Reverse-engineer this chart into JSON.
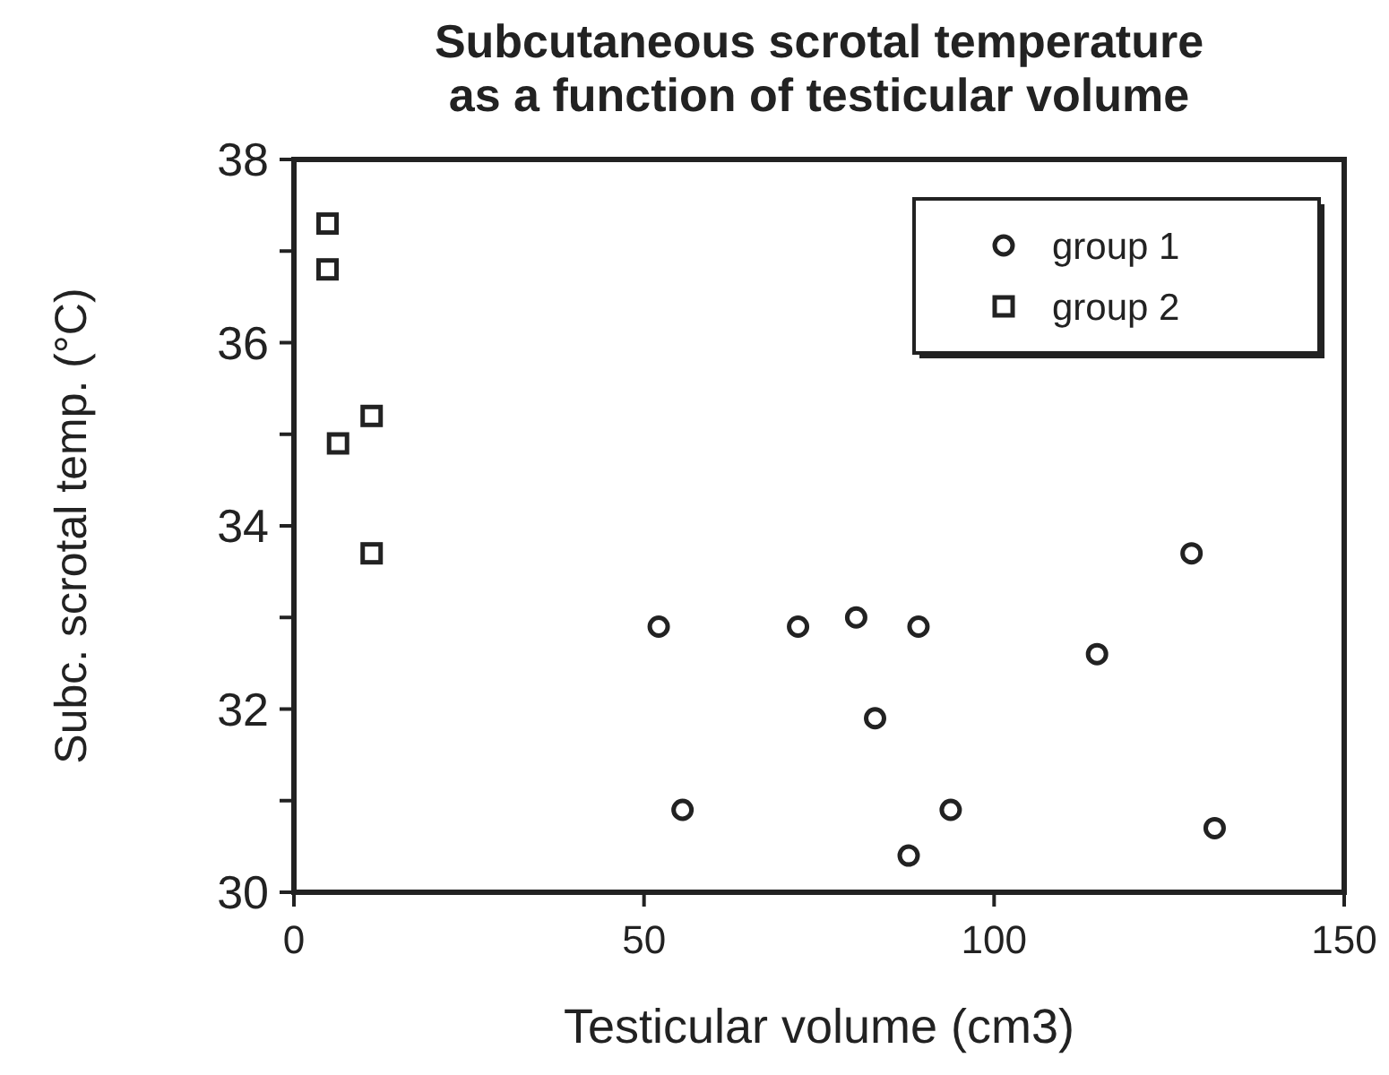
{
  "chart_data": {
    "type": "scatter",
    "title": "Subcutaneous scrotal temperature\nas a function of testicular volume",
    "xlabel": "Testicular volume (cm3)",
    "ylabel": "Subc. scrotal temp. (°C)",
    "xlim": [
      0,
      150
    ],
    "xticks": [
      0,
      50,
      100,
      150
    ],
    "ylim": [
      30,
      38
    ],
    "yticks": [
      30,
      {
        "value": 31,
        "label": null
      },
      32,
      {
        "value": 33,
        "label": null
      },
      34,
      {
        "value": 35,
        "label": null
      },
      36,
      {
        "value": 37,
        "label": null
      },
      38
    ],
    "legend": "top right",
    "grid": false,
    "series": [
      {
        "name": "group 1",
        "color": "#222222",
        "marker": "circle",
        "x": [
          52.1,
          72.0,
          80.3,
          89.2,
          83.0,
          114.7,
          128.2,
          55.5,
          93.8,
          87.8,
          131.5
        ],
        "values": [
          32.9,
          32.9,
          33.0,
          32.9,
          31.9,
          32.6,
          33.7,
          30.9,
          30.9,
          30.4,
          30.7
        ]
      },
      {
        "name": "group 2",
        "color": "#222222",
        "marker": "square",
        "x": [
          4.8,
          4.8,
          11.1,
          6.3,
          11.1
        ],
        "values": [
          37.3,
          36.8,
          35.2,
          34.9,
          33.7
        ]
      }
    ]
  }
}
